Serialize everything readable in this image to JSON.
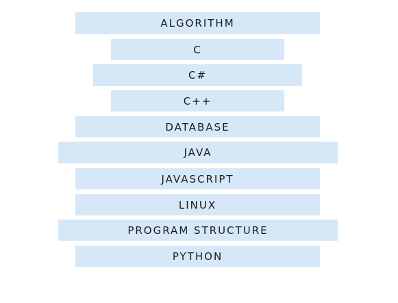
{
  "menu": {
    "items": [
      {
        "label": "ALGORITHM"
      },
      {
        "label": "C"
      },
      {
        "label": "C#"
      },
      {
        "label": "C++"
      },
      {
        "label": "DATABASE"
      },
      {
        "label": "JAVA"
      },
      {
        "label": "JAVASCRIPT"
      },
      {
        "label": "LINUX"
      },
      {
        "label": "PROGRAM STRUCTURE"
      },
      {
        "label": "PYTHON"
      }
    ]
  },
  "colors": {
    "item_background": "#d6e8f8",
    "item_text": "#1a1a1a",
    "page_background": "#ffffff"
  }
}
